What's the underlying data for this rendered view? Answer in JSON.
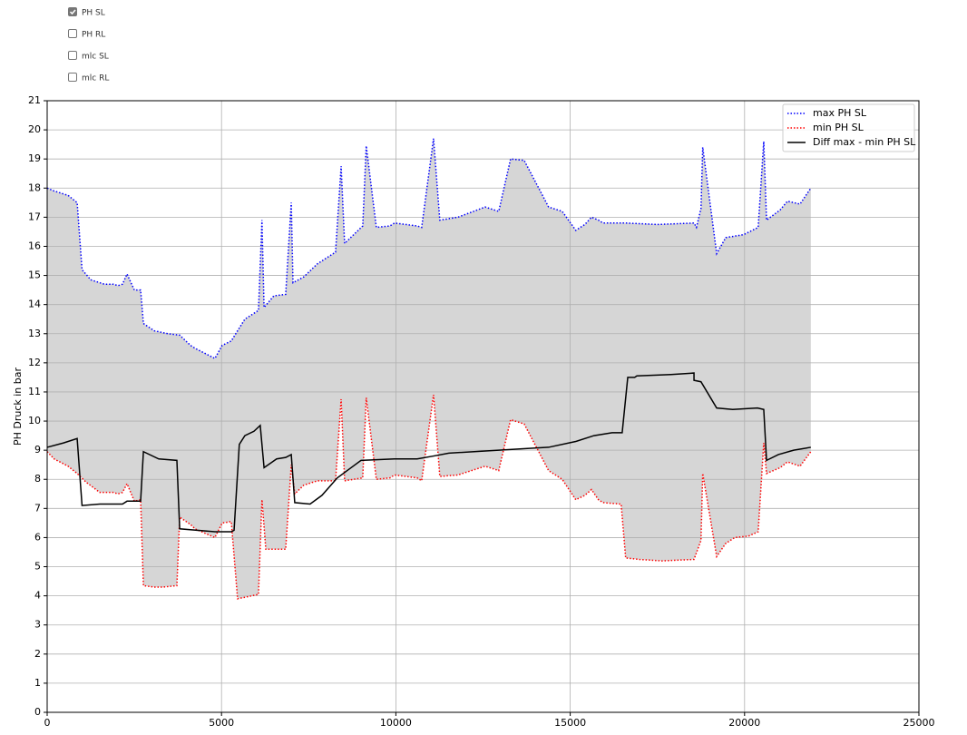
{
  "controls": {
    "checkboxes": [
      {
        "label": "PH SL",
        "checked": true
      },
      {
        "label": "PH RL",
        "checked": false
      },
      {
        "label": "mlc SL",
        "checked": false
      },
      {
        "label": "mlc RL",
        "checked": false
      }
    ]
  },
  "chart_data": {
    "type": "line",
    "ylabel": "PH Druck in bar",
    "xlim": [
      0,
      25000
    ],
    "xticks": [
      0,
      5000,
      10000,
      15000,
      20000,
      25000
    ],
    "ylim": [
      0,
      21
    ],
    "yticks": [
      0,
      1,
      2,
      3,
      4,
      5,
      6,
      7,
      8,
      9,
      10,
      11,
      12,
      13,
      14,
      15,
      16,
      17,
      18,
      19,
      20,
      21
    ],
    "grid": true,
    "legend": "upper right",
    "fill_color": "#d6d6d6",
    "series": [
      {
        "name": "max PH SL",
        "color": "#0000ff",
        "linestyle": "dotted",
        "x": [
          0,
          200,
          600,
          860,
          1000,
          1250,
          1640,
          1900,
          2030,
          2160,
          2290,
          2500,
          2680,
          2760,
          3070,
          3460,
          3800,
          4110,
          4240,
          4810,
          5020,
          5280,
          5460,
          5670,
          6060,
          6160,
          6220,
          6500,
          6840,
          7000,
          7050,
          7360,
          7750,
          8270,
          8430,
          8530,
          9050,
          9150,
          9440,
          9830,
          9960,
          10610,
          10740,
          11080,
          11260,
          11780,
          12560,
          12950,
          13290,
          13680,
          14380,
          14770,
          15160,
          15420,
          15610,
          15810,
          15940,
          16590,
          17500,
          18550,
          18620,
          18750,
          18800,
          19200,
          19460,
          19970,
          20390,
          20550,
          20630,
          21020,
          21230,
          21590,
          21900
        ],
        "values": [
          18.0,
          17.9,
          17.75,
          17.5,
          15.2,
          14.85,
          14.7,
          14.7,
          14.65,
          14.7,
          15.05,
          14.5,
          14.5,
          13.35,
          13.1,
          13.0,
          12.95,
          12.6,
          12.5,
          12.15,
          12.6,
          12.75,
          13.1,
          13.5,
          13.8,
          16.9,
          13.9,
          14.3,
          14.35,
          17.5,
          14.75,
          14.95,
          15.4,
          15.8,
          18.75,
          16.1,
          16.7,
          19.45,
          16.65,
          16.7,
          16.8,
          16.7,
          16.65,
          19.7,
          16.9,
          17.0,
          17.35,
          17.2,
          19.0,
          18.95,
          17.35,
          17.2,
          16.55,
          16.75,
          17.0,
          16.9,
          16.8,
          16.8,
          16.75,
          16.8,
          16.65,
          17.3,
          19.4,
          15.75,
          16.3,
          16.4,
          16.65,
          19.6,
          16.9,
          17.25,
          17.55,
          17.45,
          18.0
        ]
      },
      {
        "name": "min PH SL",
        "color": "#ff0000",
        "linestyle": "dotted",
        "x": [
          0,
          200,
          600,
          860,
          1120,
          1510,
          1900,
          2030,
          2160,
          2290,
          2500,
          2680,
          2760,
          3070,
          3330,
          3720,
          3800,
          4110,
          4240,
          4810,
          5020,
          5280,
          5460,
          5670,
          6060,
          6160,
          6270,
          6500,
          6840,
          7000,
          7100,
          7360,
          7750,
          8270,
          8430,
          8530,
          9050,
          9150,
          9440,
          9830,
          9960,
          10610,
          10740,
          11080,
          11260,
          11780,
          12560,
          12950,
          13290,
          13680,
          14380,
          14770,
          15160,
          15420,
          15610,
          15810,
          15940,
          16460,
          16590,
          16980,
          17630,
          18550,
          18750,
          18800,
          19200,
          19460,
          19720,
          20110,
          20390,
          20550,
          20630,
          21020,
          21230,
          21590,
          21900
        ],
        "values": [
          8.95,
          8.7,
          8.45,
          8.2,
          7.9,
          7.55,
          7.55,
          7.5,
          7.55,
          7.85,
          7.25,
          7.3,
          4.35,
          4.3,
          4.3,
          4.35,
          6.7,
          6.45,
          6.3,
          6.0,
          6.5,
          6.55,
          3.9,
          3.95,
          4.05,
          7.3,
          5.6,
          5.6,
          5.6,
          8.5,
          7.5,
          7.8,
          7.95,
          7.95,
          10.75,
          7.95,
          8.05,
          10.8,
          8.0,
          8.05,
          8.15,
          8.05,
          7.95,
          10.9,
          8.1,
          8.15,
          8.45,
          8.3,
          10.05,
          9.9,
          8.3,
          8.0,
          7.3,
          7.45,
          7.65,
          7.3,
          7.2,
          7.15,
          5.3,
          5.25,
          5.2,
          5.25,
          5.9,
          8.2,
          5.35,
          5.8,
          6.0,
          6.05,
          6.2,
          9.25,
          8.2,
          8.4,
          8.6,
          8.45,
          8.95
        ]
      },
      {
        "name": "Diff max - min PH SL",
        "color": "#000000",
        "linestyle": "solid",
        "x": [
          0,
          470,
          860,
          1000,
          1510,
          1900,
          2160,
          2290,
          2680,
          2760,
          3200,
          3720,
          3800,
          4810,
          5280,
          5360,
          5510,
          5670,
          5930,
          6110,
          6220,
          6580,
          6840,
          7000,
          7100,
          7540,
          7880,
          8320,
          9000,
          9960,
          10610,
          11080,
          11520,
          12950,
          14380,
          15160,
          15680,
          16200,
          16490,
          16650,
          16850,
          16910,
          17890,
          18550,
          18550,
          18750,
          19200,
          19660,
          20370,
          20550,
          20630,
          20970,
          21410,
          21900
        ],
        "values": [
          9.1,
          9.25,
          9.4,
          7.1,
          7.15,
          7.15,
          7.15,
          7.25,
          7.25,
          8.95,
          8.7,
          8.65,
          6.3,
          6.2,
          6.2,
          6.25,
          9.2,
          9.5,
          9.65,
          9.85,
          8.4,
          8.7,
          8.75,
          8.85,
          7.2,
          7.15,
          7.45,
          8.05,
          8.65,
          8.7,
          8.7,
          8.8,
          8.9,
          9.0,
          9.1,
          9.3,
          9.5,
          9.6,
          9.6,
          11.5,
          11.5,
          11.55,
          11.6,
          11.65,
          11.4,
          11.35,
          10.45,
          10.4,
          10.45,
          10.4,
          8.65,
          8.85,
          9.0,
          9.1
        ]
      }
    ]
  }
}
